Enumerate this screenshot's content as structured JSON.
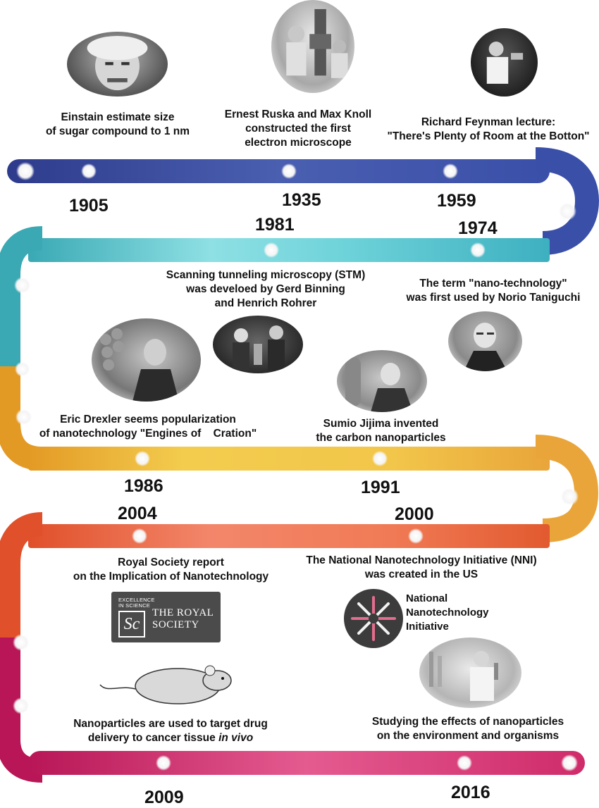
{
  "events": [
    {
      "year": "1905",
      "caption": [
        "Einstain estimate size",
        "of sugar compound to 1 nm"
      ]
    },
    {
      "year": "1935",
      "caption": [
        "Ernest Ruska and Max Knoll",
        "constructed the first",
        "electron microscope"
      ]
    },
    {
      "year": "1959",
      "caption": [
        "Richard Feynman lecture:",
        "\"There's Plenty of Room at the Botton\""
      ]
    },
    {
      "year": "1974",
      "caption": [
        "The term \"nano-technology\"",
        "was first used by Norio Taniguchi"
      ]
    },
    {
      "year": "1981",
      "caption": [
        "Scanning tunneling microscopy (STM)",
        "was develoed by Gerd Binning",
        "and Henrich Rohrer"
      ]
    },
    {
      "year": "1986",
      "caption": [
        "Eric Drexler seems popularization",
        "of nanotechnology \"Engines of    Cration\""
      ]
    },
    {
      "year": "1991",
      "caption": [
        "Sumio Jijima invented",
        "the carbon nanoparticles"
      ]
    },
    {
      "year": "2000",
      "caption": [
        "The National Nanotechnology Initiative (NNI)",
        "was created in the US"
      ]
    },
    {
      "year": "2004",
      "caption": [
        "Royal Society report",
        "on the Implication of Nanotechnology"
      ]
    },
    {
      "year": "2009",
      "caption": [
        "Nanoparticles are used to target drug",
        "delivery to cancer tissue in vivo"
      ]
    },
    {
      "year": "2016",
      "caption": [
        "Studying the effects of nanoparticles",
        "on the environment and organisms"
      ]
    }
  ],
  "logos": {
    "royal_society": {
      "badge": [
        "EXCELLENCE",
        "IN SCIENCE"
      ],
      "name": [
        "THE ROYAL",
        "SOCIETY"
      ]
    },
    "nni": {
      "name": [
        "National",
        "Nanotechnology",
        "Initiative"
      ]
    }
  },
  "colors": {
    "row1": [
      "#2e3b8c",
      "#4a5fb0"
    ],
    "row2": [
      "#3aa9b4",
      "#86dde2"
    ],
    "row3": [
      "#e8a02a",
      "#f2c64a"
    ],
    "row4": [
      "#e0502a",
      "#f08060"
    ],
    "row5": [
      "#c2185b",
      "#e35a8e"
    ]
  }
}
